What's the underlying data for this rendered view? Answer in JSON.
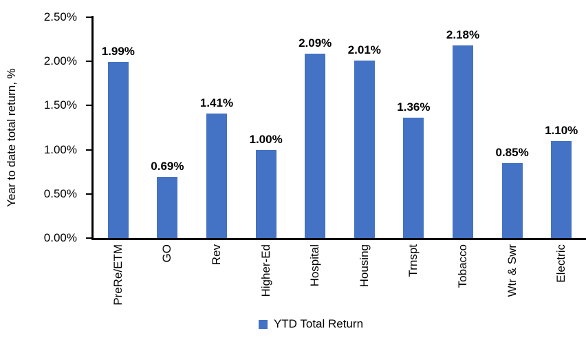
{
  "chart_data": {
    "type": "bar",
    "ylabel": "Year to date total return, %",
    "categories": [
      "PreRe/ETM",
      "GO",
      "Rev",
      "Higher-Ed",
      "Hospital",
      "Housing",
      "Trnspt",
      "Tobacco",
      "Wtr & Swr",
      "Electric"
    ],
    "values": [
      1.99,
      0.69,
      1.41,
      1.0,
      2.09,
      2.01,
      1.36,
      2.18,
      0.85,
      1.1
    ],
    "value_labels": [
      "1.99%",
      "0.69%",
      "1.41%",
      "1.00%",
      "2.09%",
      "2.01%",
      "1.36%",
      "2.18%",
      "0.85%",
      "1.10%"
    ],
    "ylim": [
      0,
      2.5
    ],
    "yticks": [
      0,
      0.5,
      1.0,
      1.5,
      2.0,
      2.5
    ],
    "ytick_labels": [
      "0.00%",
      "0.50%",
      "1.00%",
      "1.50%",
      "2.00%",
      "2.50%"
    ],
    "legend": {
      "label": "YTD Total Return",
      "position": "bottom-center"
    },
    "bar_color": "#4472C4",
    "axis_color": "#000000",
    "grid": false
  }
}
